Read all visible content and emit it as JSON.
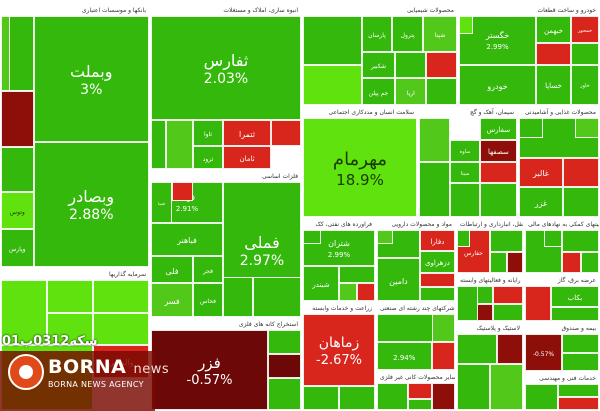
{
  "chart_data": {
    "type": "heatmap",
    "colors": {
      "up_strong": "#1faa00",
      "up": "#35b80c",
      "up_light": "#52c91a",
      "up_bright": "#5fe20e",
      "neutral": "#6b8f2a",
      "down": "#d8261d",
      "down_dark": "#8e0f0a",
      "down_deep": "#6d0808"
    },
    "sectors": [
      {
        "name": "بانکها و موسسات اعتباری",
        "cells": [
          {
            "name": "وبملت",
            "pct": "3%",
            "color": "up"
          },
          {
            "name": "وبصادر",
            "pct": "2.88%",
            "color": "up"
          },
          {
            "name": "",
            "pct": "",
            "color": "up"
          },
          {
            "name": "",
            "pct": "",
            "color": "down_dark"
          },
          {
            "name": "",
            "pct": "",
            "color": "up"
          },
          {
            "name": "وتوس",
            "pct": "",
            "color": "up_bright"
          },
          {
            "name": "وپارس",
            "pct": "",
            "color": "up"
          },
          {
            "name": "",
            "pct": "",
            "color": "up_light"
          }
        ]
      },
      {
        "name": "انبوه سازی، املاک و مستغلات",
        "cells": [
          {
            "name": "ثفارس",
            "pct": "2.03%",
            "color": "up"
          },
          {
            "name": "",
            "pct": "",
            "color": "down"
          },
          {
            "name": "ثتمرا",
            "pct": "",
            "color": "down"
          },
          {
            "name": "ثاوا",
            "pct": "",
            "color": "up"
          },
          {
            "name": "ثامان",
            "pct": "",
            "color": "down"
          },
          {
            "name": "ثرود",
            "pct": "",
            "color": "up"
          },
          {
            "name": "",
            "pct": "",
            "color": "up_light"
          },
          {
            "name": "",
            "pct": "",
            "color": "up"
          }
        ]
      },
      {
        "name": "محصولات شیمیایی",
        "cells": [
          {
            "name": "پارسان",
            "pct": "",
            "color": "up"
          },
          {
            "name": "پترول",
            "pct": "",
            "color": "up"
          },
          {
            "name": "شپنا",
            "pct": "",
            "color": "up_light"
          },
          {
            "name": "شکبیر",
            "pct": "",
            "color": "up"
          },
          {
            "name": "",
            "pct": "",
            "color": "up"
          },
          {
            "name": "جم پیلن",
            "pct": "",
            "color": "up"
          },
          {
            "name": "آریا",
            "pct": "",
            "color": "up_light"
          },
          {
            "name": "",
            "pct": "",
            "color": "down"
          },
          {
            "name": "",
            "pct": "",
            "color": "up"
          },
          {
            "name": "",
            "pct": "",
            "color": "up"
          },
          {
            "name": "",
            "pct": "",
            "color": "up_bright"
          }
        ]
      },
      {
        "name": "خودرو و ساخت قطعات",
        "cells": [
          {
            "name": "خگستر",
            "pct": "2.99%",
            "color": "up"
          },
          {
            "name": "خودرو",
            "pct": "",
            "color": "up"
          },
          {
            "name": "خساپا",
            "pct": "",
            "color": "up"
          },
          {
            "name": "خاور",
            "pct": "",
            "color": "up"
          },
          {
            "name": "خبهمن",
            "pct": "",
            "color": "up"
          },
          {
            "name": "خمحور",
            "pct": "",
            "color": "down"
          },
          {
            "name": "",
            "pct": "",
            "color": "down"
          },
          {
            "name": "",
            "pct": "",
            "color": "up"
          },
          {
            "name": "",
            "pct": "",
            "color": "up_bright"
          }
        ]
      },
      {
        "name": "سلامت انسان و مددکاری اجتماعی",
        "cells": [
          {
            "name": "مهرمام",
            "pct": "18.9%",
            "color": "up_bright"
          }
        ]
      },
      {
        "name": "سیمان، آهک و گچ",
        "cells": [
          {
            "name": "سفارس",
            "pct": "",
            "color": "up"
          },
          {
            "name": "سصفها",
            "pct": "",
            "color": "down_dark"
          },
          {
            "name": "ساوه",
            "pct": "",
            "color": "up"
          },
          {
            "name": "سیتا",
            "pct": "",
            "color": "up"
          },
          {
            "name": "",
            "pct": "",
            "color": "up_light"
          },
          {
            "name": "",
            "pct": "",
            "color": "up"
          },
          {
            "name": "",
            "pct": "",
            "color": "down"
          },
          {
            "name": "",
            "pct": "",
            "color": "up"
          },
          {
            "name": "",
            "pct": "",
            "color": "up"
          }
        ]
      },
      {
        "name": "محصولات غذایی و آشامیدنی",
        "cells": [
          {
            "name": "",
            "pct": "",
            "color": "up"
          },
          {
            "name": "",
            "pct": "",
            "color": "down"
          },
          {
            "name": "غالبر",
            "pct": "",
            "color": "down"
          },
          {
            "name": "غزر",
            "pct": "",
            "color": "up"
          },
          {
            "name": "",
            "pct": "",
            "color": "up"
          },
          {
            "name": "",
            "pct": "",
            "color": "up_light"
          },
          {
            "name": "",
            "pct": "",
            "color": "up"
          }
        ]
      },
      {
        "name": "فلزات اساسی",
        "cells": [
          {
            "name": "فملی",
            "pct": "2.97%",
            "color": "up"
          },
          {
            "name": "فولاد",
            "pct": "2.91%",
            "color": "up"
          },
          {
            "name": "فباهنر",
            "pct": "",
            "color": "up"
          },
          {
            "name": "فلی",
            "pct": "",
            "color": "up"
          },
          {
            "name": "فجر",
            "pct": "",
            "color": "up"
          },
          {
            "name": "فسر",
            "pct": "",
            "color": "up_light"
          },
          {
            "name": "فخاس",
            "pct": "",
            "color": "up"
          },
          {
            "name": "فتینا",
            "pct": "",
            "color": "up"
          },
          {
            "name": "",
            "pct": "",
            "color": "down"
          },
          {
            "name": "",
            "pct": "",
            "color": "up"
          },
          {
            "name": "",
            "pct": "",
            "color": "up"
          }
        ]
      },
      {
        "name": "فراورده های نفتی، کک",
        "cells": [
          {
            "name": "شتران",
            "pct": "2.99%",
            "color": "up"
          },
          {
            "name": "شبندر",
            "pct": "",
            "color": "up"
          },
          {
            "name": "",
            "pct": "",
            "color": "up"
          },
          {
            "name": "",
            "pct": "",
            "color": "up_light"
          },
          {
            "name": "",
            "pct": "",
            "color": "down"
          },
          {
            "name": "",
            "pct": "",
            "color": "up"
          }
        ]
      },
      {
        "name": "مواد و محصولات دارویی",
        "cells": [
          {
            "name": "دفارا",
            "pct": "",
            "color": "down"
          },
          {
            "name": "دزهراوی",
            "pct": "",
            "color": "up"
          },
          {
            "name": "",
            "pct": "",
            "color": "up"
          },
          {
            "name": "دامین",
            "pct": "",
            "color": "up"
          },
          {
            "name": "",
            "pct": "",
            "color": "down"
          },
          {
            "name": "",
            "pct": "",
            "color": "up"
          },
          {
            "name": "",
            "pct": "",
            "color": "up_light"
          }
        ]
      },
      {
        "name": "حمل ونقل، انبارداری و ارتباطات",
        "cells": [
          {
            "name": "حفارس",
            "pct": "",
            "color": "down"
          },
          {
            "name": "",
            "pct": "",
            "color": "up"
          },
          {
            "name": "",
            "pct": "",
            "color": "up"
          },
          {
            "name": "",
            "pct": "",
            "color": "down_dark"
          },
          {
            "name": "",
            "pct": "",
            "color": "up"
          }
        ]
      },
      {
        "name": "فعالیتهای کمکی به نهادهای مالی",
        "cells": [
          {
            "name": "",
            "pct": "",
            "color": "up"
          },
          {
            "name": "",
            "pct": "",
            "color": "up"
          },
          {
            "name": "",
            "pct": "",
            "color": "down"
          },
          {
            "name": "",
            "pct": "",
            "color": "up"
          },
          {
            "name": "",
            "pct": "",
            "color": "up"
          }
        ]
      },
      {
        "name": "رایانه و فعالیتهای وابسته",
        "cells": [
          {
            "name": "",
            "pct": "",
            "color": "up"
          },
          {
            "name": "",
            "pct": "",
            "color": "down"
          },
          {
            "name": "",
            "pct": "",
            "color": "up"
          },
          {
            "name": "",
            "pct": "",
            "color": "up"
          },
          {
            "name": "",
            "pct": "",
            "color": "down_dark"
          }
        ]
      },
      {
        "name": "عرضه برق، گاز",
        "cells": [
          {
            "name": "",
            "pct": "",
            "color": "down"
          },
          {
            "name": "بکاب",
            "pct": "",
            "color": "up"
          },
          {
            "name": "",
            "pct": "",
            "color": "up"
          }
        ]
      },
      {
        "name": "بیمه و صندوق",
        "cells": [
          {
            "name": "",
            "pct": "-0.57%",
            "color": "down_dark"
          },
          {
            "name": "",
            "pct": "",
            "color": "up"
          },
          {
            "name": "",
            "pct": "",
            "color": "up"
          }
        ]
      },
      {
        "name": "سرمایه گذاریها",
        "cells": [
          {
            "name": "",
            "pct": "",
            "color": "up_bright"
          },
          {
            "name": "",
            "pct": "",
            "color": "up_bright"
          },
          {
            "name": "",
            "pct": "",
            "color": "up_bright"
          },
          {
            "name": "",
            "pct": "",
            "color": "up_bright"
          },
          {
            "name": "",
            "pct": "",
            "color": "up_bright"
          },
          {
            "name": "",
            "pct": "",
            "color": "down"
          },
          {
            "name": "والماس",
            "pct": "",
            "color": "down"
          },
          {
            "name": "",
            "pct": "",
            "color": "up_bright"
          }
        ]
      },
      {
        "name": "استخراج کانه های فلزی",
        "cells": [
          {
            "name": "فزر",
            "pct": "-0.57%",
            "color": "down_deep"
          },
          {
            "name": "",
            "pct": "",
            "color": "up"
          },
          {
            "name": "",
            "pct": "",
            "color": "down_deep"
          },
          {
            "name": "",
            "pct": "",
            "color": "up"
          }
        ]
      },
      {
        "name": "زراعت و خدمات وابسته",
        "cells": [
          {
            "name": "زماهان",
            "pct": "-2.67%",
            "color": "down"
          },
          {
            "name": "",
            "pct": "",
            "color": "up"
          },
          {
            "name": "",
            "pct": "",
            "color": "up"
          }
        ]
      },
      {
        "name": "شرکتهای چند رشته ای صنعتی",
        "cells": [
          {
            "name": "",
            "pct": "",
            "color": "up"
          },
          {
            "name": "",
            "pct": "2.94%",
            "color": "up"
          },
          {
            "name": "",
            "pct": "",
            "color": "down"
          },
          {
            "name": "",
            "pct": "",
            "color": "up_light"
          }
        ]
      },
      {
        "name": "سایر محصولات کانی غیر فلزی",
        "cells": [
          {
            "name": "",
            "pct": "",
            "color": "up"
          },
          {
            "name": "",
            "pct": "",
            "color": "down"
          },
          {
            "name": "",
            "pct": "",
            "color": "up"
          },
          {
            "name": "",
            "pct": "",
            "color": "down_dark"
          }
        ]
      },
      {
        "name": "لاستیک و پلاستیک",
        "cells": [
          {
            "name": "",
            "pct": "",
            "color": "up"
          },
          {
            "name": "",
            "pct": "",
            "color": "down_dark"
          },
          {
            "name": "",
            "pct": "",
            "color": "up"
          },
          {
            "name": "",
            "pct": "",
            "color": "up_light"
          }
        ]
      },
      {
        "name": "خدمات فنی و مهندسی",
        "cells": [
          {
            "name": "",
            "pct": "",
            "color": "up"
          },
          {
            "name": "",
            "pct": "",
            "color": "up"
          },
          {
            "name": "",
            "pct": "",
            "color": "down"
          }
        ]
      }
    ]
  },
  "watermark": {
    "code": "سکه0312ب01",
    "brand": "BORNA",
    "brand_suffix": "news",
    "agency": "BORNA NEWS AGENCY"
  }
}
